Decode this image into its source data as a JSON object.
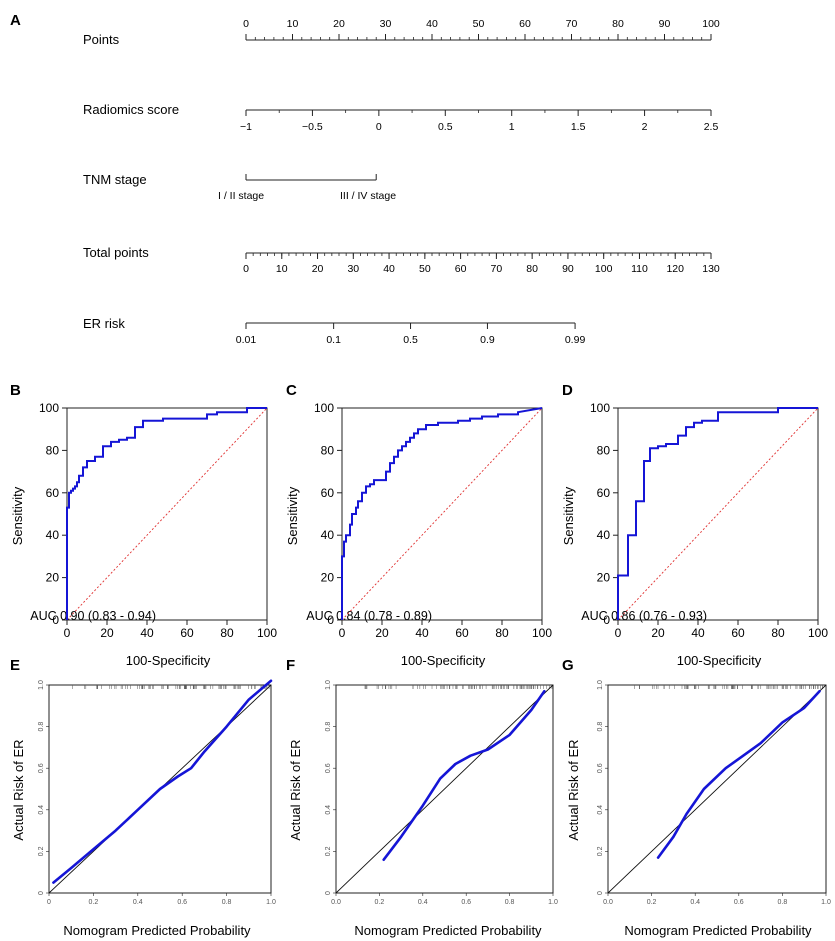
{
  "panel_labels": [
    "A",
    "B",
    "C",
    "D",
    "E",
    "F",
    "G"
  ],
  "chart_data": [
    {
      "type": "nomogram",
      "panel": "A",
      "rows": [
        {
          "name": "Points",
          "start": 0,
          "end": 100,
          "labels": [
            0,
            10,
            20,
            30,
            40,
            50,
            60,
            70,
            80,
            90,
            100
          ],
          "minor_step": 2
        },
        {
          "name": "Radiomics score",
          "start": -1,
          "end": 2.5,
          "labels": [
            {
              "v": -1,
              "t": "−1"
            },
            {
              "v": -0.5,
              "t": "−0.5"
            },
            {
              "v": 0,
              "t": "0"
            },
            {
              "v": 0.5,
              "t": "0.5"
            },
            {
              "v": 1,
              "t": "1"
            },
            {
              "v": 1.5,
              "t": "1.5"
            },
            {
              "v": 2,
              "t": "2"
            },
            {
              "v": 2.5,
              "t": "2.5"
            }
          ],
          "points_at_start": 0,
          "points_at_end": 100
        },
        {
          "name": "TNM stage",
          "levels": [
            "I / II stage",
            "III / IV stage"
          ],
          "points": [
            0,
            28
          ]
        },
        {
          "name": "Total points",
          "start": 0,
          "end": 130,
          "labels": [
            0,
            10,
            20,
            30,
            40,
            50,
            60,
            70,
            80,
            90,
            100,
            110,
            120,
            130
          ],
          "minor_step": 2
        },
        {
          "name": "ER risk",
          "labels": [
            "0.01",
            "0.1",
            "0.5",
            "0.9",
            "0.99"
          ],
          "total_points": [
            0,
            24.5,
            46,
            67.5,
            92
          ]
        }
      ]
    },
    {
      "type": "line",
      "subtype": "roc",
      "panel": "B",
      "xlabel": "100-Specificity",
      "ylabel": "Sensitivity",
      "xlim": [
        0,
        100
      ],
      "ylim": [
        0,
        100
      ],
      "xticks": [
        0,
        20,
        40,
        60,
        80,
        100
      ],
      "yticks": [
        0,
        20,
        40,
        60,
        80,
        100
      ],
      "annotation": "AUC 0.90 (0.83 - 0.94)",
      "x": [
        0,
        0,
        1,
        1,
        2,
        2,
        3,
        3,
        4,
        4,
        5,
        5,
        6,
        6,
        8,
        8,
        10,
        10,
        14,
        14,
        18,
        18,
        22,
        22,
        26,
        26,
        30,
        30,
        34,
        34,
        38,
        38,
        48,
        48,
        70,
        70,
        75,
        75,
        90,
        90,
        100
      ],
      "y": [
        0,
        53,
        53,
        60,
        60,
        61,
        61,
        62,
        62,
        63,
        63,
        65,
        65,
        68,
        68,
        72,
        72,
        75,
        75,
        77,
        77,
        82,
        82,
        84,
        84,
        85,
        85,
        86,
        86,
        91,
        91,
        94,
        94,
        95,
        95,
        97,
        97,
        98,
        98,
        100,
        100
      ]
    },
    {
      "type": "line",
      "subtype": "roc",
      "panel": "C",
      "xlabel": "100-Specificity",
      "ylabel": "Sensitivity",
      "xlim": [
        0,
        100
      ],
      "ylim": [
        0,
        100
      ],
      "xticks": [
        0,
        20,
        40,
        60,
        80,
        100
      ],
      "yticks": [
        0,
        20,
        40,
        60,
        80,
        100
      ],
      "annotation": "AUC 0.84 (0.78 - 0.89)",
      "x": [
        0,
        0,
        1,
        1,
        2,
        2,
        4,
        4,
        5,
        5,
        7,
        7,
        8,
        8,
        10,
        10,
        12,
        12,
        14,
        14,
        16,
        16,
        22,
        22,
        24,
        24,
        26,
        26,
        28,
        28,
        30,
        30,
        32,
        32,
        34,
        34,
        36,
        36,
        38,
        38,
        42,
        42,
        48,
        48,
        58,
        58,
        64,
        64,
        70,
        70,
        78,
        78,
        88,
        88,
        100
      ],
      "y": [
        0,
        30,
        30,
        37,
        37,
        40,
        40,
        45,
        45,
        50,
        50,
        53,
        53,
        56,
        56,
        60,
        60,
        63,
        63,
        64,
        64,
        66,
        66,
        70,
        70,
        74,
        74,
        77,
        77,
        80,
        80,
        82,
        82,
        84,
        84,
        86,
        86,
        88,
        88,
        90,
        90,
        92,
        92,
        93,
        93,
        94,
        94,
        95,
        95,
        96,
        96,
        97,
        97,
        98,
        100
      ]
    },
    {
      "type": "line",
      "subtype": "roc",
      "panel": "D",
      "xlabel": "100-Specificity",
      "ylabel": "Sensitivity",
      "xlim": [
        0,
        100
      ],
      "ylim": [
        0,
        100
      ],
      "xticks": [
        0,
        20,
        40,
        60,
        80,
        100
      ],
      "yticks": [
        0,
        20,
        40,
        60,
        80,
        100
      ],
      "annotation": "AUC 0.86 (0.76 - 0.93)",
      "x": [
        0,
        0,
        5,
        5,
        9,
        9,
        13,
        13,
        16,
        16,
        20,
        20,
        24,
        24,
        30,
        30,
        34,
        34,
        38,
        38,
        42,
        42,
        50,
        50,
        80,
        80,
        100
      ],
      "y": [
        0,
        21,
        21,
        40,
        40,
        56,
        56,
        75,
        75,
        81,
        81,
        82,
        82,
        83,
        83,
        87,
        87,
        91,
        91,
        93,
        93,
        94,
        94,
        98,
        98,
        100,
        100
      ]
    },
    {
      "type": "line",
      "subtype": "calibration",
      "panel": "E",
      "xlabel": "Nomogram Predicted Probability",
      "ylabel": "Actual Risk of ER",
      "xlim": [
        0,
        1
      ],
      "ylim": [
        0,
        1
      ],
      "ticks": [
        "0",
        "0.2",
        "0.4",
        "0.6",
        "0.8",
        "1.0"
      ],
      "yticks_left": [
        "0",
        "0.2",
        "0.4",
        "0.6",
        "0.8",
        "1.0"
      ],
      "x": [
        0.02,
        0.1,
        0.2,
        0.3,
        0.4,
        0.5,
        0.58,
        0.64,
        0.7,
        0.8,
        0.9,
        1.0
      ],
      "y": [
        0.05,
        0.12,
        0.21,
        0.3,
        0.4,
        0.5,
        0.56,
        0.6,
        0.68,
        0.8,
        0.93,
        1.02
      ]
    },
    {
      "type": "line",
      "subtype": "calibration",
      "panel": "F",
      "xlabel": "Nomogram Predicted Probability",
      "ylabel": "Actual Risk of ER",
      "xlim": [
        0,
        1
      ],
      "ylim": [
        0,
        1
      ],
      "ticks": [
        "0.0",
        "0.2",
        "0.4",
        "0.6",
        "0.8",
        "1.0"
      ],
      "yticks_left": [
        "0",
        "0.2",
        "0.4",
        "0.6",
        "0.8",
        "1.0"
      ],
      "x": [
        0.22,
        0.3,
        0.4,
        0.48,
        0.55,
        0.62,
        0.7,
        0.8,
        0.9,
        0.96
      ],
      "y": [
        0.16,
        0.27,
        0.42,
        0.55,
        0.62,
        0.66,
        0.69,
        0.76,
        0.88,
        0.97
      ]
    },
    {
      "type": "line",
      "subtype": "calibration",
      "panel": "G",
      "xlabel": "Nomogram Predicted Probability",
      "ylabel": "Actual Risk of ER",
      "xlim": [
        0,
        1
      ],
      "ylim": [
        0,
        1
      ],
      "ticks": [
        "0.0",
        "0.2",
        "0.4",
        "0.6",
        "0.8",
        "1.0"
      ],
      "yticks_left": [
        "0",
        "0.2",
        "0.4",
        "0.6",
        "0.8",
        "1.0"
      ],
      "x": [
        0.23,
        0.3,
        0.36,
        0.44,
        0.54,
        0.62,
        0.7,
        0.8,
        0.9,
        0.97
      ],
      "y": [
        0.17,
        0.27,
        0.38,
        0.5,
        0.6,
        0.66,
        0.72,
        0.82,
        0.89,
        0.97
      ]
    }
  ],
  "colors": {
    "curve": "#1515d6",
    "reference": "#e03030",
    "axis": "#222222",
    "diagonal": "#111111"
  }
}
